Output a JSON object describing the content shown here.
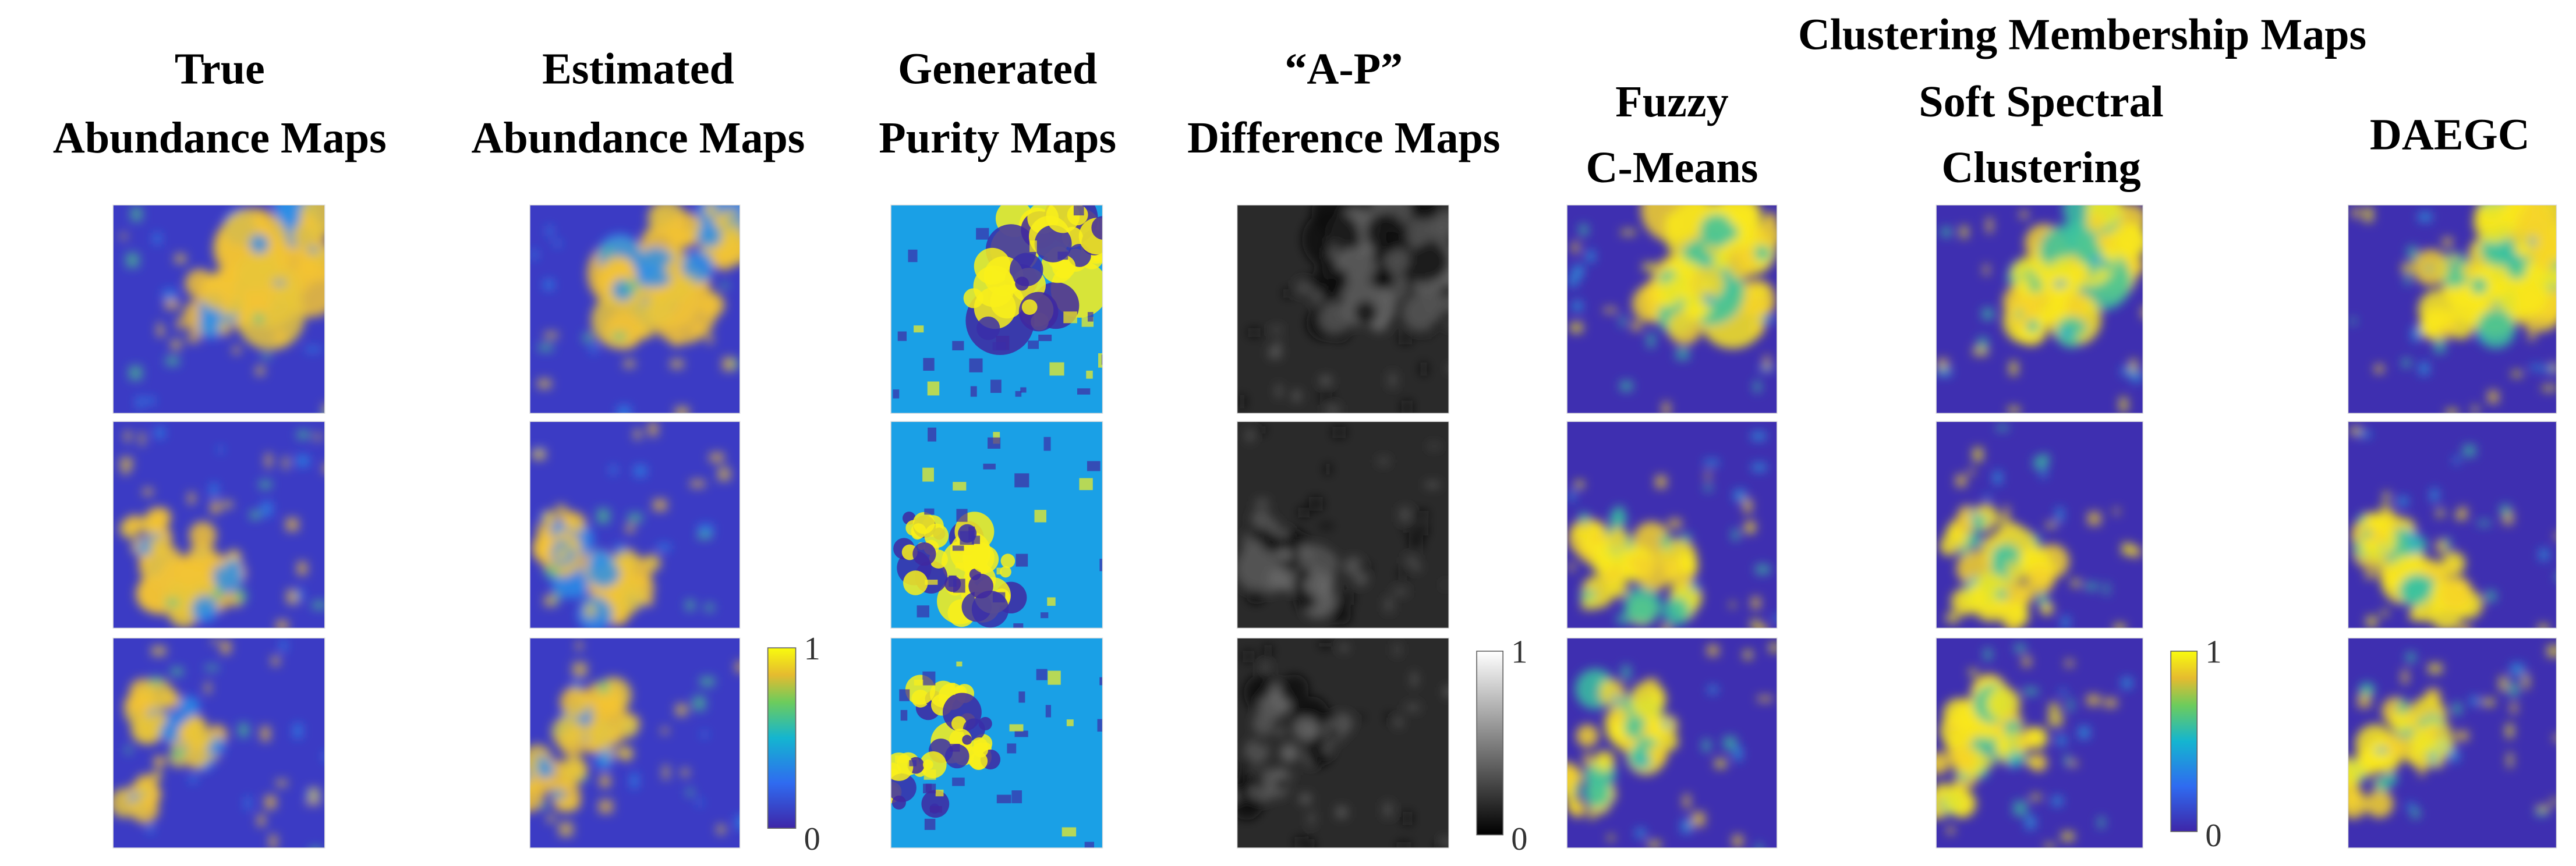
{
  "group_title": "Clustering Membership Maps",
  "columns": [
    {
      "lines": [
        "True",
        "Abundance Maps"
      ]
    },
    {
      "lines": [
        "Estimated",
        "Abundance Maps"
      ]
    },
    {
      "lines": [
        "Generated",
        "Purity Maps"
      ]
    },
    {
      "lines": [
        "“A-P”",
        "Difference Maps"
      ]
    },
    {
      "lines": [
        "Fuzzy",
        "C-Means"
      ]
    },
    {
      "lines": [
        "Soft Spectral",
        "Clustering"
      ]
    },
    {
      "lines": [
        "DAEGC"
      ]
    }
  ],
  "colorbars": [
    {
      "top": 1,
      "bottom": 0
    },
    {
      "top": 1,
      "bottom": 0
    },
    {
      "top": 1,
      "bottom": 0
    }
  ]
}
